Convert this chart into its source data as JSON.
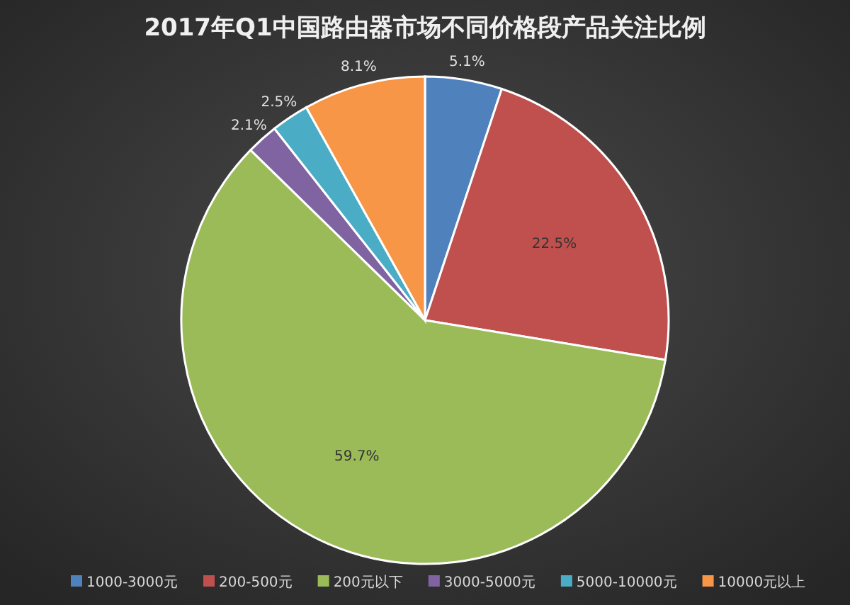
{
  "chart_data": {
    "type": "pie",
    "title": "2017年Q1中国路由器市场不同价格段产品关注比例",
    "categories": [
      "1000-3000元",
      "200-500元",
      "200元以下",
      "3000-5000元",
      "5000-10000元",
      "10000元以上"
    ],
    "values": [
      5.1,
      22.5,
      59.7,
      2.1,
      2.5,
      8.1
    ],
    "colors": [
      "#4f81bd",
      "#c0504d",
      "#9bbb59",
      "#8064a2",
      "#4bacc6",
      "#f79646"
    ],
    "value_labels": [
      "5.1%",
      "22.5%",
      "59.7%",
      "2.1%",
      "2.5%",
      "8.1%"
    ],
    "legend": "bottom"
  }
}
